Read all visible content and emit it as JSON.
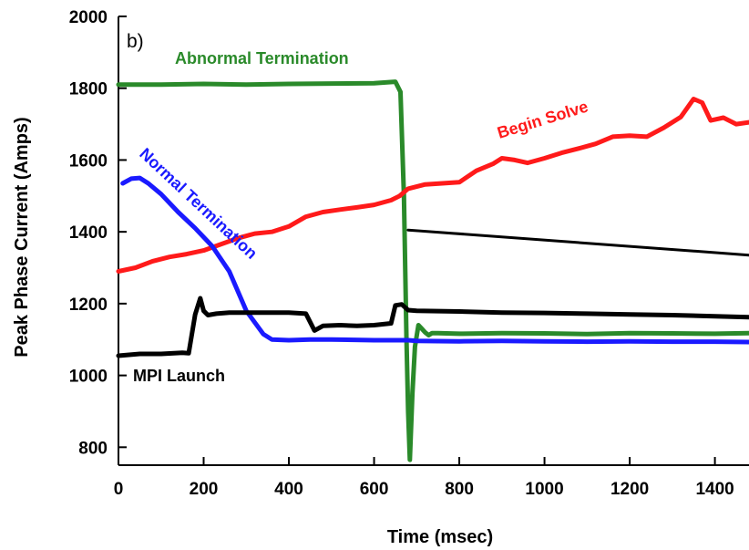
{
  "chart_data": {
    "type": "line",
    "panel_label": "b)",
    "xlabel": "Time (msec)",
    "ylabel": "Peak Phase Current (Amps)",
    "xlim": [
      0,
      1480
    ],
    "ylim": [
      750,
      2000
    ],
    "xticks": [
      0,
      200,
      400,
      600,
      800,
      1000,
      1200,
      1400
    ],
    "yticks": [
      800,
      1000,
      1200,
      1400,
      1600,
      1800,
      2000
    ],
    "grid": false,
    "legend": "none (inline series labels)",
    "series": [
      {
        "name": "Abnormal Termination",
        "color": "#2a8a2a",
        "points": [
          [
            0,
            1810
          ],
          [
            100,
            1810
          ],
          [
            200,
            1812
          ],
          [
            300,
            1810
          ],
          [
            400,
            1812
          ],
          [
            500,
            1813
          ],
          [
            600,
            1814
          ],
          [
            650,
            1818
          ],
          [
            662,
            1790
          ],
          [
            670,
            1500
          ],
          [
            676,
            1100
          ],
          [
            680,
            900
          ],
          [
            684,
            765
          ],
          [
            690,
            950
          ],
          [
            696,
            1080
          ],
          [
            704,
            1140
          ],
          [
            712,
            1130
          ],
          [
            720,
            1120
          ],
          [
            728,
            1112
          ],
          [
            736,
            1118
          ],
          [
            750,
            1118
          ],
          [
            800,
            1116
          ],
          [
            900,
            1118
          ],
          [
            1000,
            1117
          ],
          [
            1100,
            1115
          ],
          [
            1200,
            1118
          ],
          [
            1300,
            1117
          ],
          [
            1400,
            1116
          ],
          [
            1480,
            1118
          ]
        ]
      },
      {
        "name": "Begin Solve",
        "color": "#ff1a1a",
        "points": [
          [
            0,
            1290
          ],
          [
            40,
            1300
          ],
          [
            80,
            1318
          ],
          [
            120,
            1330
          ],
          [
            160,
            1338
          ],
          [
            200,
            1348
          ],
          [
            240,
            1365
          ],
          [
            280,
            1382
          ],
          [
            320,
            1395
          ],
          [
            360,
            1400
          ],
          [
            400,
            1415
          ],
          [
            440,
            1442
          ],
          [
            480,
            1455
          ],
          [
            520,
            1462
          ],
          [
            560,
            1468
          ],
          [
            600,
            1475
          ],
          [
            640,
            1488
          ],
          [
            660,
            1500
          ],
          [
            680,
            1520
          ],
          [
            720,
            1532
          ],
          [
            760,
            1535
          ],
          [
            800,
            1538
          ],
          [
            840,
            1570
          ],
          [
            880,
            1590
          ],
          [
            900,
            1605
          ],
          [
            930,
            1600
          ],
          [
            960,
            1592
          ],
          [
            1000,
            1605
          ],
          [
            1040,
            1620
          ],
          [
            1080,
            1632
          ],
          [
            1120,
            1645
          ],
          [
            1160,
            1665
          ],
          [
            1200,
            1668
          ],
          [
            1240,
            1665
          ],
          [
            1280,
            1690
          ],
          [
            1320,
            1720
          ],
          [
            1350,
            1770
          ],
          [
            1370,
            1760
          ],
          [
            1390,
            1710
          ],
          [
            1420,
            1718
          ],
          [
            1450,
            1700
          ],
          [
            1480,
            1705
          ]
        ]
      },
      {
        "name": "Normal Termination",
        "color": "#1a1aff",
        "points": [
          [
            10,
            1535
          ],
          [
            30,
            1548
          ],
          [
            50,
            1550
          ],
          [
            70,
            1535
          ],
          [
            100,
            1505
          ],
          [
            140,
            1455
          ],
          [
            180,
            1410
          ],
          [
            220,
            1360
          ],
          [
            260,
            1290
          ],
          [
            300,
            1180
          ],
          [
            340,
            1115
          ],
          [
            360,
            1100
          ],
          [
            400,
            1098
          ],
          [
            450,
            1100
          ],
          [
            500,
            1100
          ],
          [
            600,
            1098
          ],
          [
            680,
            1098
          ],
          [
            700,
            1096
          ],
          [
            800,
            1095
          ],
          [
            900,
            1096
          ],
          [
            1000,
            1095
          ],
          [
            1100,
            1094
          ],
          [
            1200,
            1095
          ],
          [
            1300,
            1094
          ],
          [
            1400,
            1094
          ],
          [
            1480,
            1093
          ]
        ]
      },
      {
        "name": "MPI Launch",
        "color": "#000000",
        "points": [
          [
            0,
            1055
          ],
          [
            50,
            1060
          ],
          [
            100,
            1060
          ],
          [
            150,
            1063
          ],
          [
            165,
            1062
          ],
          [
            180,
            1170
          ],
          [
            192,
            1215
          ],
          [
            200,
            1180
          ],
          [
            210,
            1168
          ],
          [
            230,
            1172
          ],
          [
            260,
            1175
          ],
          [
            300,
            1175
          ],
          [
            350,
            1175
          ],
          [
            400,
            1175
          ],
          [
            440,
            1172
          ],
          [
            460,
            1125
          ],
          [
            480,
            1138
          ],
          [
            520,
            1140
          ],
          [
            560,
            1138
          ],
          [
            600,
            1140
          ],
          [
            640,
            1145
          ],
          [
            650,
            1195
          ],
          [
            665,
            1198
          ],
          [
            680,
            1182
          ],
          [
            700,
            1180
          ],
          [
            800,
            1178
          ],
          [
            900,
            1175
          ],
          [
            1000,
            1174
          ],
          [
            1100,
            1172
          ],
          [
            1200,
            1170
          ],
          [
            1300,
            1168
          ],
          [
            1400,
            1165
          ],
          [
            1480,
            1162
          ]
        ]
      },
      {
        "name": "",
        "color": "#000000",
        "points": [
          [
            680,
            1405
          ],
          [
            1480,
            1335
          ]
        ]
      }
    ]
  }
}
